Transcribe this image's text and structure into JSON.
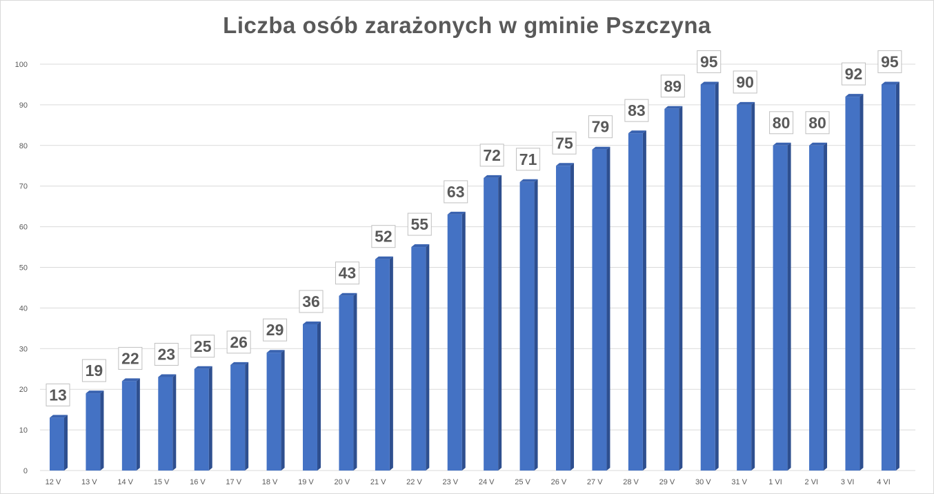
{
  "chart_data": {
    "type": "bar",
    "title": "Liczba osób zarażonych w gminie Pszczyna",
    "categories": [
      "12 V",
      "13 V",
      "14 V",
      "15 V",
      "16 V",
      "17 V",
      "18 V",
      "19 V",
      "20 V",
      "21 V",
      "22 V",
      "23 V",
      "24 V",
      "25 V",
      "26 V",
      "27 V",
      "28 V",
      "29 V",
      "30 V",
      "31 V",
      "1 VI",
      "2 VI",
      "3 VI",
      "4 VI"
    ],
    "values": [
      13,
      19,
      22,
      23,
      25,
      26,
      29,
      36,
      43,
      52,
      55,
      63,
      72,
      71,
      75,
      79,
      83,
      89,
      95,
      90,
      80,
      80,
      92,
      95
    ],
    "xlabel": "",
    "ylabel": "",
    "ylim": [
      0,
      100
    ],
    "yticks": [
      "0",
      "10",
      "20",
      "30",
      "40",
      "50",
      "60",
      "70",
      "80",
      "90",
      "100"
    ],
    "grid": true,
    "legend": "none",
    "data_labels": true,
    "style": "3d-columns",
    "colors": {
      "bar_front": "#4472C4",
      "bar_side": "#2E4F8F",
      "bar_top": "#3A63B0",
      "grid": "#d9d9d9",
      "text": "#595959",
      "label_box_border": "#bfbfbf"
    }
  }
}
